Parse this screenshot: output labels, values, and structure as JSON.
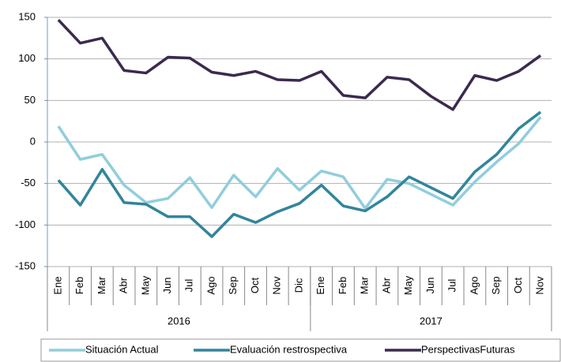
{
  "chart_data": {
    "type": "line",
    "groups": [
      {
        "name": "2016",
        "categories": [
          "Ene",
          "Feb",
          "Mar",
          "Abr",
          "May",
          "Jun",
          "Jul",
          "Ago",
          "Sep",
          "Oct",
          "Nov",
          "Dic"
        ]
      },
      {
        "name": "2017",
        "categories": [
          "Ene",
          "Feb",
          "Mar",
          "Abr",
          "May",
          "Jun",
          "Jul",
          "Ago",
          "Sep",
          "Oct",
          "Nov"
        ]
      }
    ],
    "series": [
      {
        "name": "Situación Actual",
        "color": "#92cddc",
        "values": [
          19,
          -21,
          -15,
          -52,
          -73,
          -68,
          -43,
          -79,
          -40,
          -66,
          -32,
          -58,
          -35,
          -42,
          -80,
          -45,
          -50,
          -63,
          -76,
          -48,
          -24,
          -2,
          30
        ]
      },
      {
        "name": "Evaluación restrospectiva",
        "color": "#31859c",
        "values": [
          -46,
          -76,
          -33,
          -73,
          -75,
          -90,
          -90,
          -114,
          -87,
          -97,
          -84,
          -74,
          -52,
          -77,
          -83,
          -66,
          -42,
          -55,
          -68,
          -36,
          -15,
          16,
          36
        ]
      },
      {
        "name": "PerspectivasFuturas",
        "color": "#3b2a4e",
        "values": [
          147,
          119,
          125,
          86,
          83,
          102,
          101,
          84,
          80,
          85,
          75,
          74,
          85,
          56,
          53,
          78,
          75,
          55,
          39,
          80,
          74,
          85,
          104
        ]
      }
    ],
    "ylim": [
      -150,
      150
    ],
    "yticks": [
      -150,
      -100,
      -50,
      0,
      50,
      100,
      150
    ],
    "grid": true,
    "legend": "bottom"
  }
}
